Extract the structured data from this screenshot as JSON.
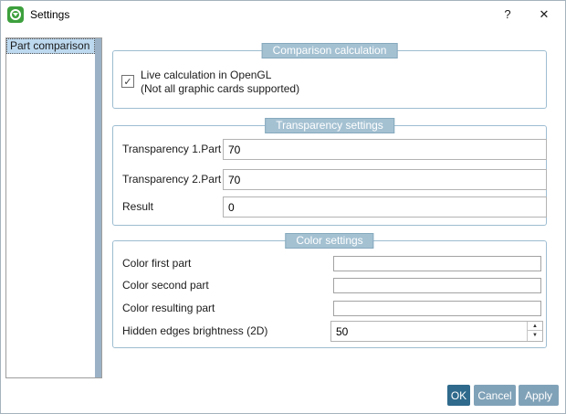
{
  "window": {
    "title": "Settings"
  },
  "icons": {
    "help": "?",
    "close": "✕",
    "check": "✓",
    "spin_up": "▲",
    "spin_down": "▼"
  },
  "sidebar": {
    "items": [
      {
        "label": "Part comparison",
        "selected": true
      }
    ]
  },
  "comparison_group": {
    "title": "Comparison calculation",
    "checkbox_checked": true,
    "checkbox_label_line1": "Live calculation in OpenGL",
    "checkbox_label_line2": "(Not all graphic cards supported)"
  },
  "transparency_group": {
    "title": "Transparency settings",
    "fields": [
      {
        "label": "Transparency 1.Part",
        "value": "70"
      },
      {
        "label": "Transparency 2.Part",
        "value": "70"
      },
      {
        "label": "Result",
        "value": "0"
      }
    ]
  },
  "color_group": {
    "title": "Color settings",
    "swatches": [
      {
        "label": "Color first part",
        "color": "#1d7ed4"
      },
      {
        "label": "Color second part",
        "color": "#9d1310"
      },
      {
        "label": "Color resulting part",
        "color": "#f8f303"
      }
    ],
    "spinner": {
      "label": "Hidden edges brightness (2D)",
      "value": "50"
    }
  },
  "footer": {
    "ok": "OK",
    "cancel": "Cancel",
    "apply": "Apply"
  },
  "theme": {
    "badge_bg": "#a4c1d2",
    "badge_border": "#86a9bd",
    "group_border": "#9dbdd1",
    "ok_button_bg": "#2f6a8c",
    "button_bg": "#80a2b8",
    "selected_item_bg": "#bdd9ef",
    "sidebar_scrollbar": "#9bb2c6",
    "app_icon_green": "#3da03d"
  }
}
